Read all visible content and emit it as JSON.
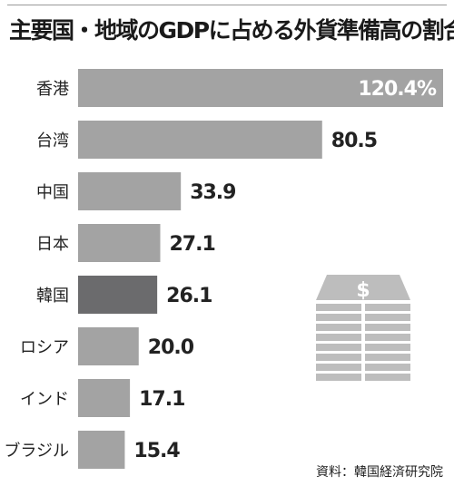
{
  "title": "主要国・地域のGDPに占める外貨準備高の割合",
  "source": "資料：韓国経済研究院",
  "icon": "money-stack-icon",
  "colors": {
    "bar": "#a3a3a3",
    "highlight": "#6b6b6d",
    "icon": "#bdbdbd"
  },
  "chart_data": {
    "type": "bar",
    "orientation": "horizontal",
    "categories": [
      "香港",
      "台湾",
      "中国",
      "日本",
      "韓国",
      "ロシア",
      "インド",
      "ブラジル"
    ],
    "values": [
      120.4,
      80.5,
      33.9,
      27.1,
      26.1,
      20.0,
      17.1,
      15.4
    ],
    "value_labels": [
      "120.4%",
      "80.5",
      "33.9",
      "27.1",
      "26.1",
      "20.0",
      "17.1",
      "15.4"
    ],
    "highlight": "韓国",
    "xlim": [
      0,
      120.4
    ],
    "unit": "%",
    "grid": false,
    "legend": "none"
  }
}
